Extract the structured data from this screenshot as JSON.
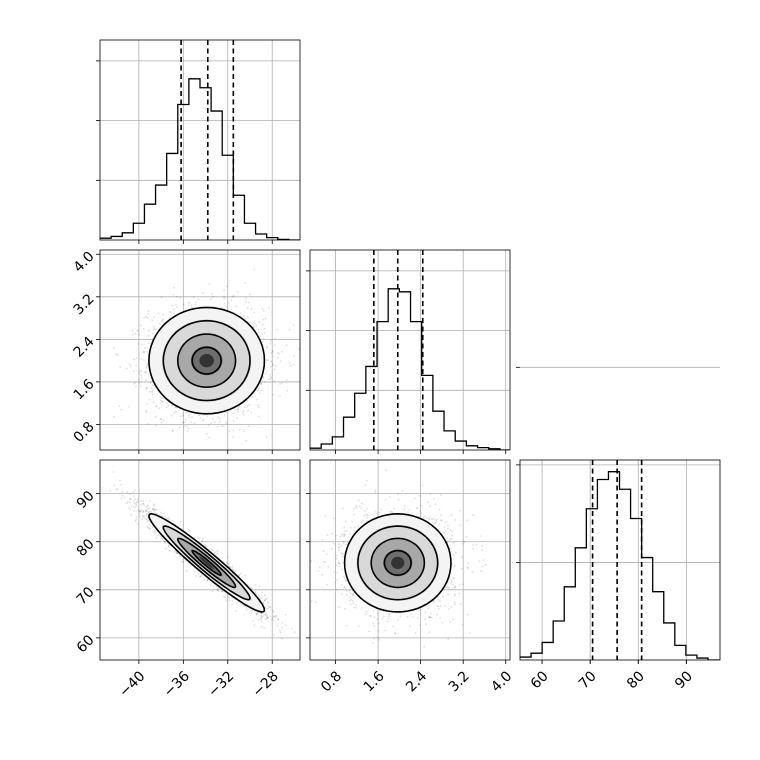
{
  "chart_data": [
    {
      "type": "histogram",
      "param": 0,
      "xlim": [
        -43.5,
        -25.5
      ],
      "bin_edges": [
        -43.5,
        -42.5,
        -41.5,
        -40.5,
        -39.5,
        -38.5,
        -37.5,
        -36.5,
        -35.5,
        -34.5,
        -33.5,
        -32.5,
        -31.5,
        -30.5,
        -29.5,
        -28.5,
        -27.5,
        -26.5,
        -25.5
      ],
      "counts": [
        0.3,
        0.6,
        1.2,
        2.8,
        6.0,
        9.2,
        14.5,
        22.7,
        27.0,
        25.5,
        21.6,
        14.2,
        7.5,
        2.8,
        1.0,
        0.4,
        0.1,
        0.0
      ],
      "quantile_lines": [
        -36.2,
        -33.8,
        -31.5
      ],
      "y_ticks": [
        10,
        20,
        30
      ],
      "ylim": [
        0,
        33.5
      ],
      "grid": true
    },
    {
      "type": "histogram",
      "param": 1,
      "xlim": [
        0.32,
        4.08
      ],
      "bin_edges": [
        0.32,
        0.53,
        0.74,
        0.95,
        1.16,
        1.37,
        1.58,
        1.79,
        2.0,
        2.21,
        2.42,
        2.63,
        2.84,
        3.05,
        3.26,
        3.47,
        3.68,
        3.89,
        4.08
      ],
      "counts": [
        0.3,
        1.0,
        2.2,
        5.5,
        9.5,
        14.0,
        21.5,
        27.0,
        26.5,
        21.5,
        12.5,
        6.5,
        3.2,
        1.5,
        0.7,
        0.4,
        0.2,
        0.0
      ],
      "quantile_lines": [
        1.52,
        1.97,
        2.44
      ],
      "y_ticks": [
        10,
        20,
        30
      ],
      "ylim": [
        0,
        33.5
      ],
      "grid": true
    },
    {
      "type": "histogram",
      "param": 2,
      "xlim": [
        55.4,
        97.0
      ],
      "bin_edges": [
        55.4,
        57.7,
        60.0,
        62.3,
        64.6,
        66.9,
        69.2,
        71.5,
        73.8,
        76.1,
        78.4,
        80.7,
        83.0,
        85.3,
        87.6,
        89.9,
        92.2,
        94.5,
        97.0
      ],
      "counts": [
        0.3,
        0.7,
        1.8,
        4.0,
        7.5,
        11.5,
        15.5,
        18.5,
        19.3,
        17.5,
        14.5,
        10.5,
        7.0,
        3.8,
        1.5,
        0.5,
        0.2,
        0.0
      ],
      "quantile_lines": [
        70.5,
        75.6,
        80.7
      ],
      "y_ticks": [
        10,
        20,
        30
      ],
      "ylim": [
        0,
        20.5
      ],
      "grid": true
    },
    {
      "type": "scatter_contour",
      "params": [
        0,
        1
      ],
      "xlim": [
        -43.5,
        -25.5
      ],
      "ylim": [
        0.32,
        4.08
      ],
      "mean": [
        -33.9,
        2.0
      ],
      "sd": [
        2.6,
        0.5
      ],
      "corr": 0.0,
      "y_ticks": [
        0.8,
        1.6,
        2.4,
        3.2,
        4.0
      ],
      "y_tick_labels": [
        "0.8",
        "1.6",
        "2.4",
        "3.2",
        "4.0"
      ],
      "grid": true
    },
    {
      "type": "scatter_contour",
      "params": [
        0,
        2
      ],
      "xlim": [
        -43.5,
        -25.5
      ],
      "ylim": [
        55.4,
        97.0
      ],
      "mean": [
        -33.9,
        75.6
      ],
      "sd": [
        2.6,
        5.1
      ],
      "corr": -0.96,
      "x_ticks": [
        -40,
        -36,
        -32,
        -28
      ],
      "x_tick_labels": [
        "−40",
        "−36",
        "−32",
        "−28"
      ],
      "y_ticks": [
        60,
        70,
        80,
        90
      ],
      "y_tick_labels": [
        "60",
        "70",
        "80",
        "90"
      ],
      "grid": true
    },
    {
      "type": "scatter_contour",
      "params": [
        1,
        2
      ],
      "xlim": [
        0.32,
        4.08
      ],
      "ylim": [
        55.4,
        97.0
      ],
      "mean": [
        1.97,
        75.6
      ],
      "sd": [
        0.5,
        5.1
      ],
      "corr": 0.0,
      "x_ticks": [
        0.8,
        1.6,
        2.4,
        3.2,
        4.0
      ],
      "x_tick_labels": [
        "0.8",
        "1.6",
        "2.4",
        "3.2",
        "4.0"
      ],
      "grid": true
    },
    {
      "type": "axis",
      "param": 2,
      "x_ticks": [
        60,
        70,
        80,
        90
      ],
      "x_tick_labels": [
        "60",
        "70",
        "80",
        "90"
      ]
    }
  ]
}
